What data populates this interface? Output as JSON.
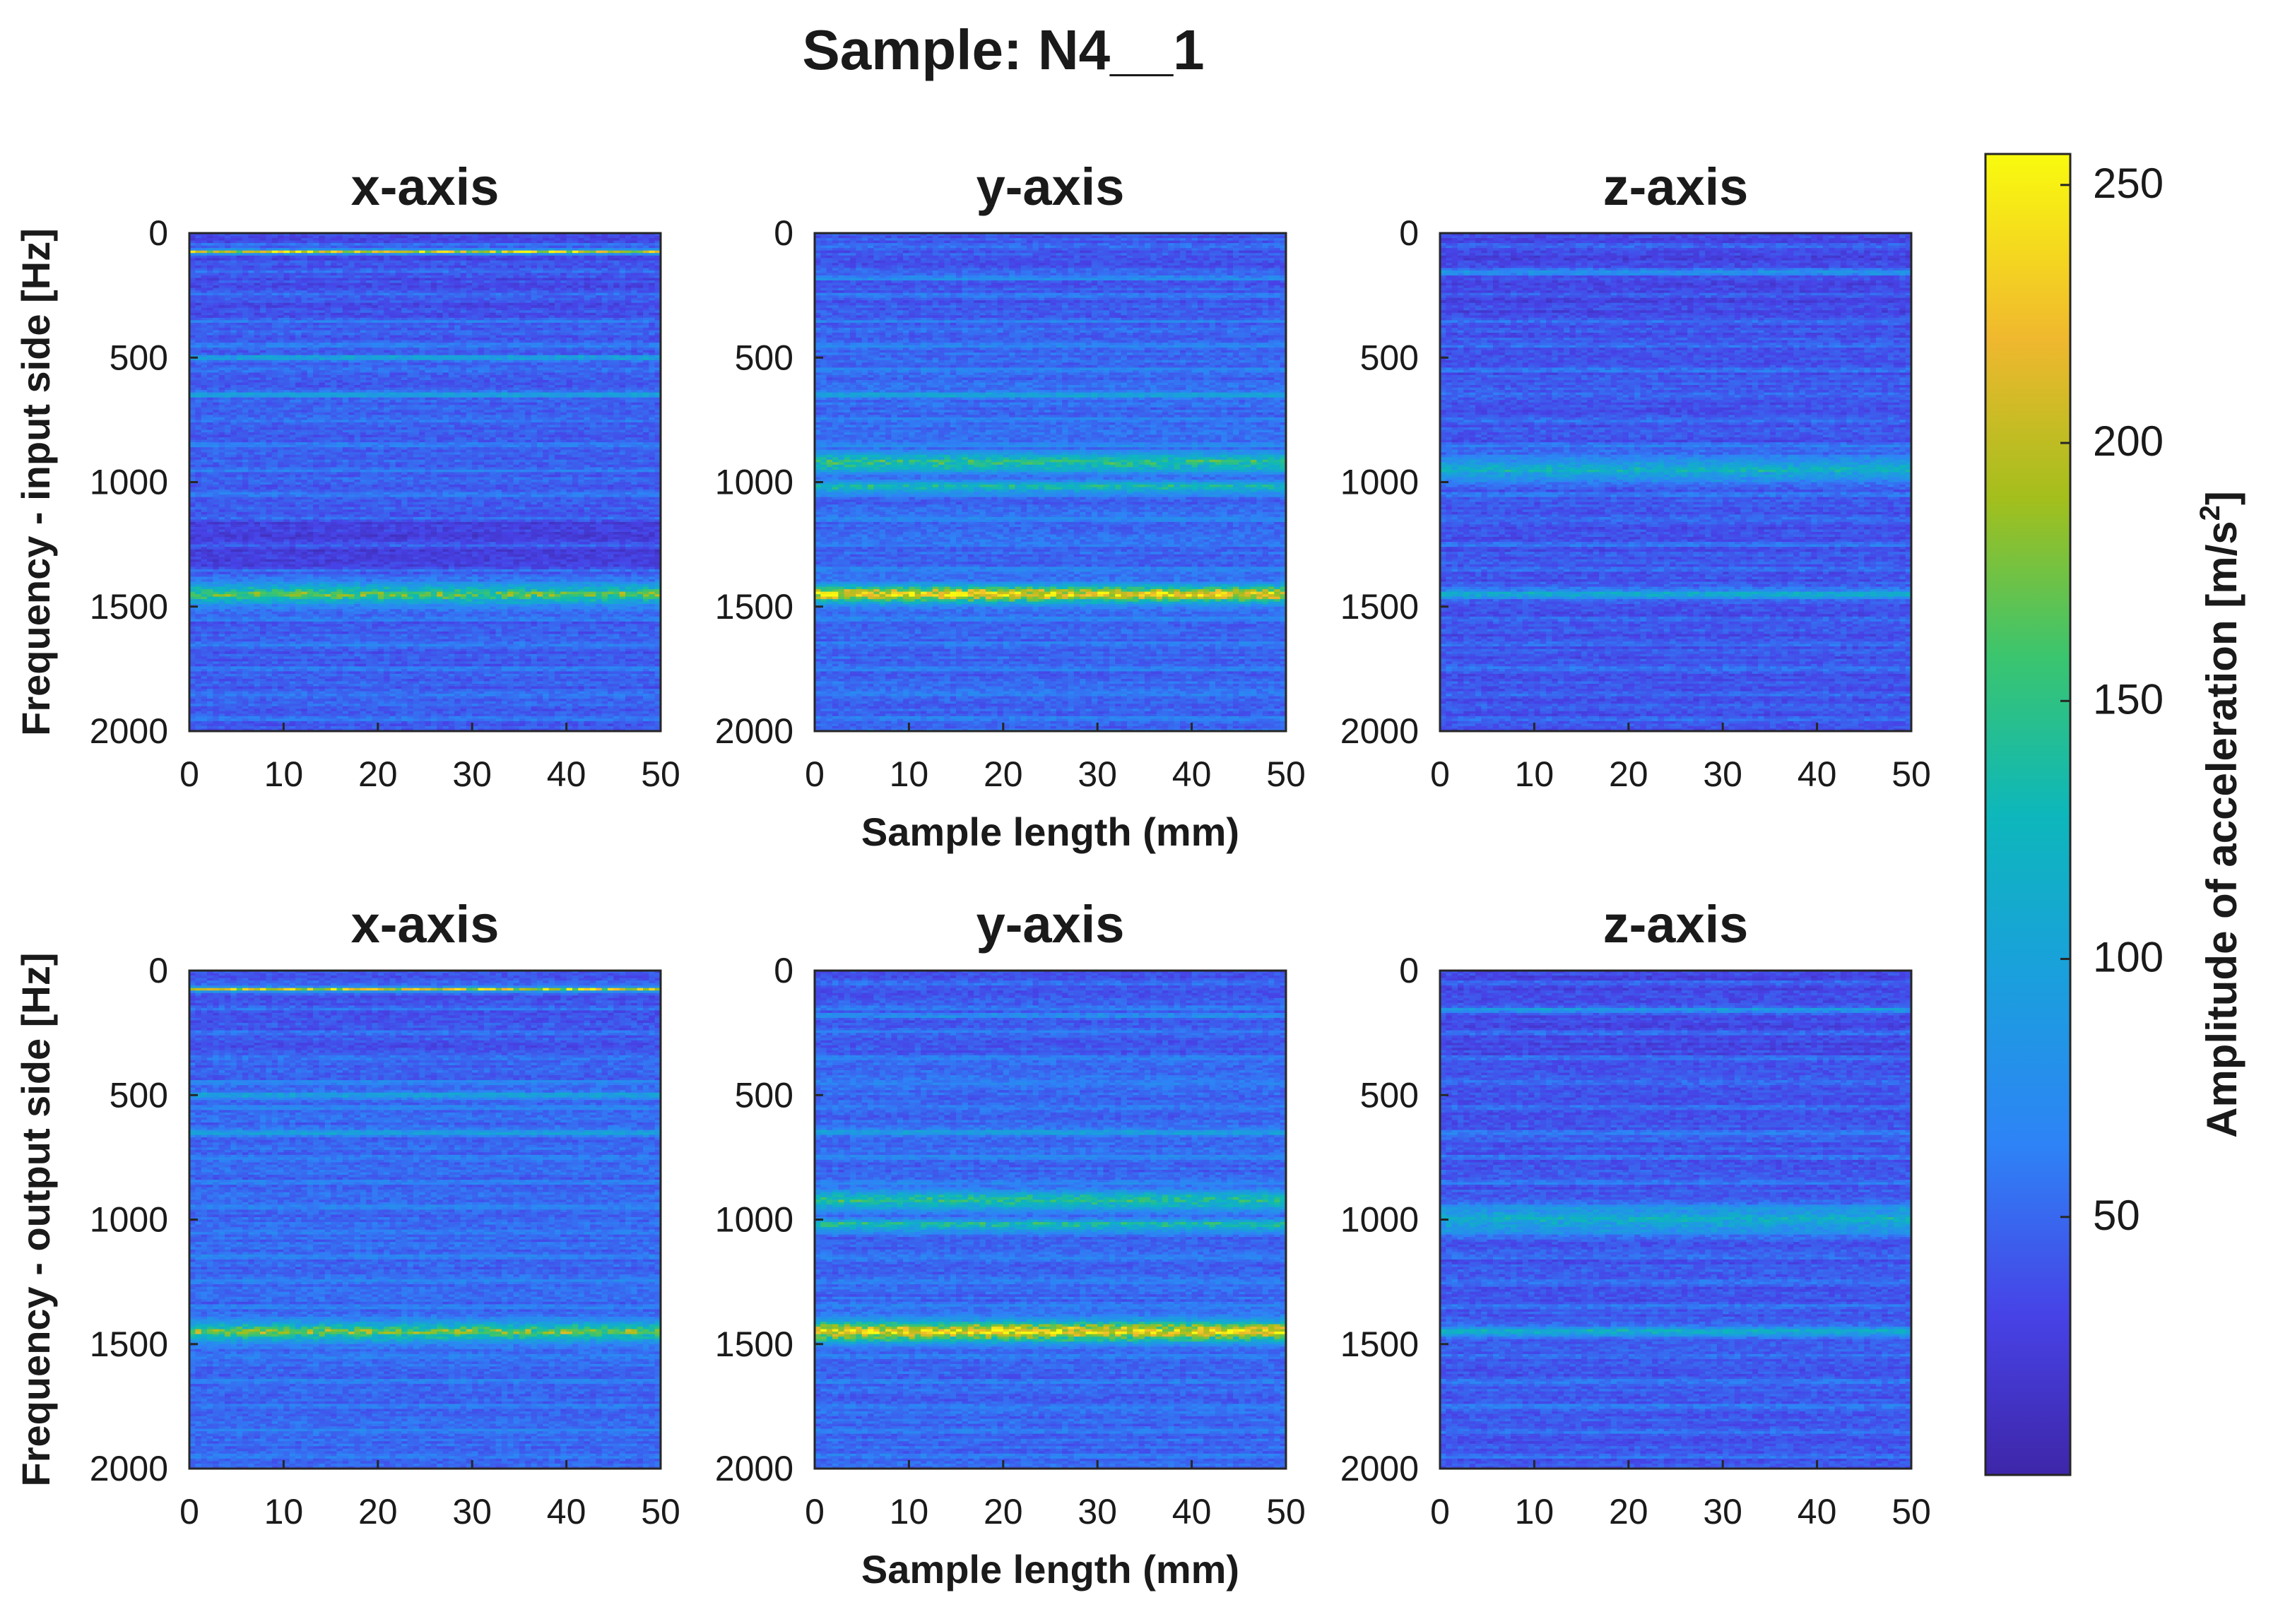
{
  "chart_data": {
    "type": "heatmap",
    "title": "Sample: N4__1",
    "x_ticks": [
      "0",
      "10",
      "20",
      "30",
      "40",
      "50"
    ],
    "y_ticks": [
      "0",
      "500",
      "1000",
      "1500",
      "2000"
    ],
    "xlim": [
      0,
      50
    ],
    "ylim": [
      0,
      2000
    ],
    "y_reversed": true,
    "xlabel": "Sample length (mm)",
    "panels": [
      {
        "row": 0,
        "title": "x-axis",
        "ylabel": "Frequency - input side [Hz]",
        "bands": [
          {
            "f": 75,
            "level": 235,
            "width": 8
          },
          {
            "f": 500,
            "level": 110,
            "width": 10
          },
          {
            "f": 650,
            "level": 90,
            "width": 12
          },
          {
            "f": 1450,
            "level": 165,
            "width": 40
          }
        ],
        "base": 45
      },
      {
        "row": 0,
        "title": "y-axis",
        "ylabel": "",
        "bands": [
          {
            "f": 180,
            "level": 90,
            "width": 10
          },
          {
            "f": 650,
            "level": 85,
            "width": 15
          },
          {
            "f": 920,
            "level": 150,
            "width": 35
          },
          {
            "f": 1020,
            "level": 140,
            "width": 20
          },
          {
            "f": 1450,
            "level": 225,
            "width": 35
          }
        ],
        "base": 50
      },
      {
        "row": 0,
        "title": "z-axis",
        "ylabel": "",
        "bands": [
          {
            "f": 160,
            "level": 95,
            "width": 10
          },
          {
            "f": 950,
            "level": 110,
            "width": 50
          },
          {
            "f": 1450,
            "level": 105,
            "width": 20
          }
        ],
        "base": 40
      },
      {
        "row": 1,
        "title": "x-axis",
        "ylabel": "Frequency - output side [Hz]",
        "bands": [
          {
            "f": 75,
            "level": 235,
            "width": 8
          },
          {
            "f": 500,
            "level": 110,
            "width": 12
          },
          {
            "f": 650,
            "level": 90,
            "width": 12
          },
          {
            "f": 1450,
            "level": 170,
            "width": 40
          }
        ],
        "base": 50
      },
      {
        "row": 1,
        "title": "y-axis",
        "ylabel": "",
        "bands": [
          {
            "f": 180,
            "level": 95,
            "width": 10
          },
          {
            "f": 650,
            "level": 85,
            "width": 15
          },
          {
            "f": 920,
            "level": 150,
            "width": 35
          },
          {
            "f": 1020,
            "level": 145,
            "width": 20
          },
          {
            "f": 1450,
            "level": 235,
            "width": 40
          }
        ],
        "base": 50
      },
      {
        "row": 1,
        "title": "z-axis",
        "ylabel": "",
        "bands": [
          {
            "f": 160,
            "level": 100,
            "width": 10
          },
          {
            "f": 1000,
            "level": 120,
            "width": 50
          },
          {
            "f": 1450,
            "level": 110,
            "width": 20
          }
        ],
        "base": 42
      }
    ],
    "colorbar": {
      "label": "Amplitude of acceleration [m/s",
      "label_sup": "2",
      "label_end": "]",
      "ticks": [
        "50",
        "100",
        "150",
        "200",
        "250"
      ],
      "range": [
        0,
        256
      ],
      "colormap": "parula"
    },
    "grid": false
  }
}
